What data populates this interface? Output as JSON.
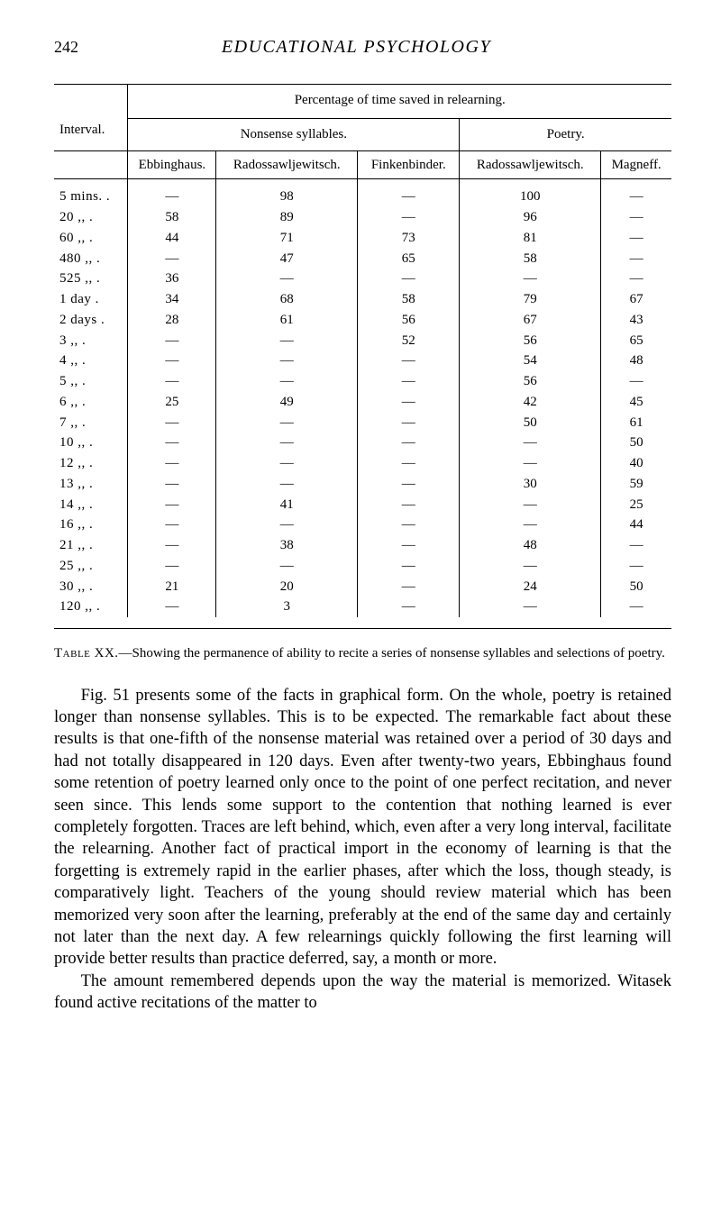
{
  "page_number": "242",
  "book_title": "EDUCATIONAL PSYCHOLOGY",
  "table": {
    "super_header": "Percentage of time saved in relearning.",
    "interval_header": "Interval.",
    "nonsense_header": "Nonsense syllables.",
    "poetry_header": "Poetry.",
    "cols": {
      "c1": "Ebbinghaus.",
      "c2": "Radossawljewitsch.",
      "c3": "Finkenbinder.",
      "c4": "Radossawljewitsch.",
      "c5": "Magneff."
    },
    "rows": [
      {
        "interval": "5 mins. .",
        "c1": "—",
        "c2": "98",
        "c3": "—",
        "c4": "100",
        "c5": "—"
      },
      {
        "interval": "20   ,,    .",
        "c1": "58",
        "c2": "89",
        "c3": "—",
        "c4": "96",
        "c5": "—"
      },
      {
        "interval": "60   ,,    .",
        "c1": "44",
        "c2": "71",
        "c3": "73",
        "c4": "81",
        "c5": "—"
      },
      {
        "interval": "480  ,,   .",
        "c1": "—",
        "c2": "47",
        "c3": "65",
        "c4": "58",
        "c5": "—"
      },
      {
        "interval": "525  ,,   .",
        "c1": "36",
        "c2": "—",
        "c3": "—",
        "c4": "—",
        "c5": "—"
      },
      {
        "interval": "1 day   .",
        "c1": "34",
        "c2": "68",
        "c3": "58",
        "c4": "79",
        "c5": "67"
      },
      {
        "interval": "2 days .",
        "c1": "28",
        "c2": "61",
        "c3": "56",
        "c4": "67",
        "c5": "43"
      },
      {
        "interval": "3   ,,    .",
        "c1": "—",
        "c2": "—",
        "c3": "52",
        "c4": "56",
        "c5": "65"
      },
      {
        "interval": "4   ,,    .",
        "c1": "—",
        "c2": "—",
        "c3": "—",
        "c4": "54",
        "c5": "48"
      },
      {
        "interval": "5   ,,    .",
        "c1": "—",
        "c2": "—",
        "c3": "—",
        "c4": "56",
        "c5": "—"
      },
      {
        "interval": "6   ,,    .",
        "c1": "25",
        "c2": "49",
        "c3": "—",
        "c4": "42",
        "c5": "45"
      },
      {
        "interval": "7   ,,    .",
        "c1": "—",
        "c2": "—",
        "c3": "—",
        "c4": "50",
        "c5": "61"
      },
      {
        "interval": "10  ,,    .",
        "c1": "—",
        "c2": "—",
        "c3": "—",
        "c4": "—",
        "c5": "50"
      },
      {
        "interval": "12  ,,    .",
        "c1": "—",
        "c2": "—",
        "c3": "—",
        "c4": "—",
        "c5": "40"
      },
      {
        "interval": "13  ,,    .",
        "c1": "—",
        "c2": "—",
        "c3": "—",
        "c4": "30",
        "c5": "59"
      },
      {
        "interval": "14  ,,    .",
        "c1": "—",
        "c2": "41",
        "c3": "—",
        "c4": "—",
        "c5": "25"
      },
      {
        "interval": "16  ,,    .",
        "c1": "—",
        "c2": "—",
        "c3": "—",
        "c4": "—",
        "c5": "44"
      },
      {
        "interval": "21  ,,    .",
        "c1": "—",
        "c2": "38",
        "c3": "—",
        "c4": "48",
        "c5": "—"
      },
      {
        "interval": "25  ,,    .",
        "c1": "—",
        "c2": "—",
        "c3": "—",
        "c4": "—",
        "c5": "—"
      },
      {
        "interval": "30  ,,    .",
        "c1": "21",
        "c2": "20",
        "c3": "—",
        "c4": "24",
        "c5": "50"
      },
      {
        "interval": "120 ,,    .",
        "c1": "—",
        "c2": "3",
        "c3": "—",
        "c4": "—",
        "c5": "—"
      }
    ]
  },
  "caption_label": "Table XX.",
  "caption_text": "—Showing the permanence of ability to recite a series of nonsense syllables and selections of poetry.",
  "para1": "Fig. 51 presents some of the facts in graphical form. On the whole, poetry is retained longer than nonsense syllables. This is to be expected. The remarkable fact about these results is that one-fifth of the nonsense material was retained over a period of 30 days and had not totally disappeared in 120 days. Even after twenty-two years, Ebbinghaus found some retention of poetry learned only once to the point of one perfect recitation, and never seen since. This lends some support to the contention that nothing learned is ever completely forgotten. Traces are left behind, which, even after a very long interval, facilitate the relearning. Another fact of practical import in the economy of learning is that the forgetting is extremely rapid in the earlier phases, after which the loss, though steady, is comparatively light. Teachers of the young should review material which has been memorized very soon after the learning, preferably at the end of the same day and certainly not later than the next day. A few relearnings quickly following the first learning will provide better results than practice deferred, say, a month or more.",
  "para2": "The amount remembered depends upon the way the material is memorized. Witasek found active recitations of the matter to"
}
